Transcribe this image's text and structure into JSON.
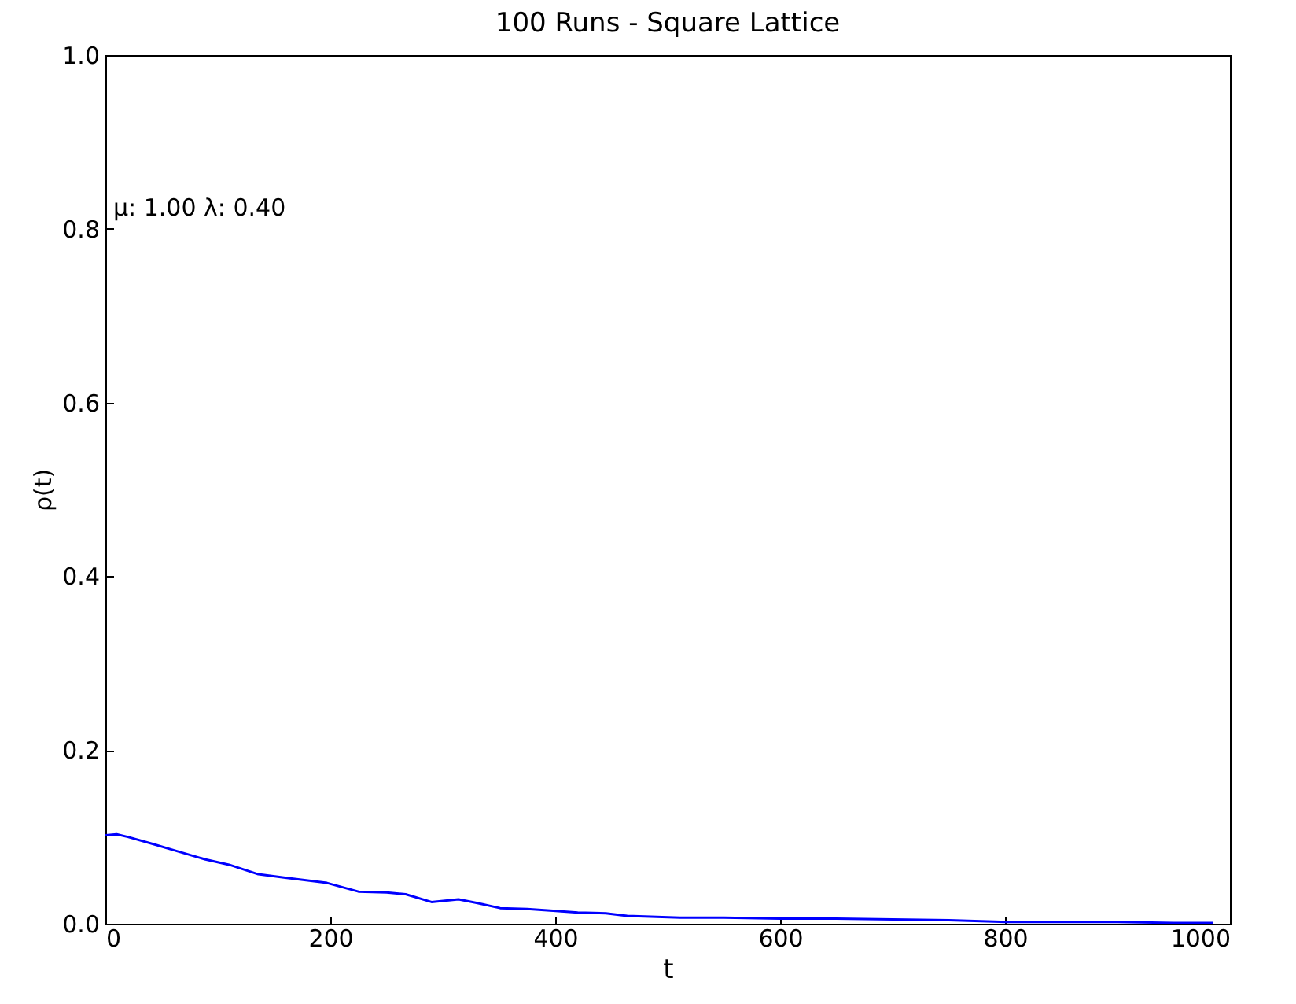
{
  "chart_data": {
    "type": "line",
    "title": "100 Runs - Square Lattice",
    "xlabel": "t",
    "ylabel": "ρ(t)",
    "annotations": [
      "μ: 1.00 λ: 0.40"
    ],
    "x": [
      0,
      10,
      20,
      42,
      60,
      89,
      110,
      136,
      160,
      197,
      225,
      250,
      267,
      290,
      314,
      330,
      351,
      375,
      398,
      420,
      445,
      464,
      490,
      511,
      550,
      600,
      650,
      700,
      750,
      800,
      850,
      900,
      950,
      985
    ],
    "series": [
      {
        "color": "#0000ff",
        "values": [
          0.102,
          0.103,
          0.1,
          0.092,
          0.085,
          0.074,
          0.068,
          0.057,
          0.053,
          0.047,
          0.037,
          0.036,
          0.034,
          0.025,
          0.028,
          0.024,
          0.018,
          0.017,
          0.015,
          0.013,
          0.012,
          0.009,
          0.008,
          0.007,
          0.007,
          0.006,
          0.006,
          0.005,
          0.004,
          0.002,
          0.002,
          0.002,
          0.001,
          0.001
        ]
      }
    ],
    "xlim": [
      0,
      1000
    ],
    "xticks": [
      0,
      200,
      400,
      600,
      800,
      1000
    ],
    "ylim": [
      0,
      1
    ],
    "yticks": [
      {
        "value": 0,
        "label": "0.0"
      },
      {
        "value": 0.2,
        "label": "0.2"
      },
      {
        "value": 0.4,
        "label": "0.4"
      },
      {
        "value": 0.6,
        "label": "0.6"
      },
      {
        "value": 0.8,
        "label": "0.8"
      },
      {
        "value": 1,
        "label": "1.0"
      }
    ],
    "grid": false,
    "line_style": "solid",
    "marker": "none"
  }
}
